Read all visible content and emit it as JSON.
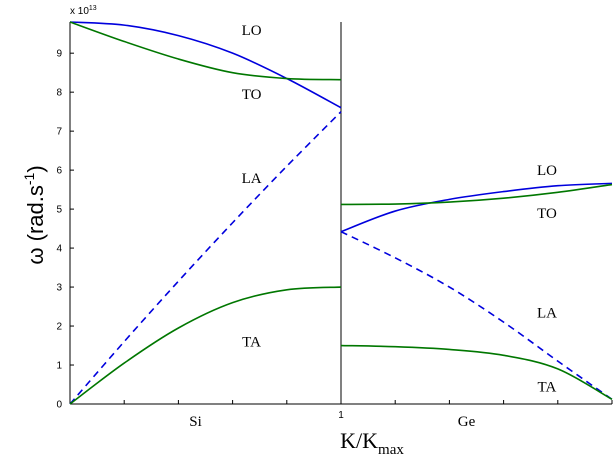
{
  "chart_data": {
    "type": "line",
    "ylabel_main": "ω (rad.s",
    "ylabel_sup": "-1",
    "ylabel_tail": ")",
    "xlabel_main": "K/K",
    "xlabel_sub": "max",
    "y_exponent_prefix": "x 10",
    "y_exponent_power": "13",
    "ylim": [
      0,
      9.8
    ],
    "yticks": [
      "0",
      "1",
      "2",
      "3",
      "4",
      "5",
      "6",
      "7",
      "8",
      "9"
    ],
    "xlim": [
      0,
      2
    ],
    "center_tick_label": "1",
    "regions": [
      "Si",
      "Ge"
    ],
    "branch_labels": [
      {
        "text": "LO",
        "x": 0.67,
        "y": 9.6
      },
      {
        "text": "TO",
        "x": 0.67,
        "y": 7.95
      },
      {
        "text": "LA",
        "x": 0.67,
        "y": 5.8
      },
      {
        "text": "TA",
        "x": 0.67,
        "y": 1.6
      },
      {
        "text": "LO",
        "x": 1.76,
        "y": 6.0
      },
      {
        "text": "TO",
        "x": 1.76,
        "y": 4.9
      },
      {
        "text": "LA",
        "x": 1.76,
        "y": 2.35
      },
      {
        "text": "TA",
        "x": 1.76,
        "y": 0.45
      }
    ],
    "series": [
      {
        "color": "#0000dd",
        "dashed": false,
        "x": [
          0,
          0.2,
          0.4,
          0.6,
          0.8,
          1.0
        ],
        "y": [
          9.8,
          9.72,
          9.45,
          9.0,
          8.35,
          7.6
        ]
      },
      {
        "color": "#007700",
        "dashed": false,
        "x": [
          0,
          0.2,
          0.4,
          0.6,
          0.8,
          1.0
        ],
        "y": [
          9.8,
          9.3,
          8.85,
          8.5,
          8.35,
          8.32
        ]
      },
      {
        "color": "#0000dd",
        "dashed": true,
        "x": [
          0,
          0.2,
          0.4,
          0.6,
          0.8,
          1.0
        ],
        "y": [
          0,
          1.6,
          3.15,
          4.65,
          6.1,
          7.5
        ]
      },
      {
        "color": "#007700",
        "dashed": false,
        "x": [
          0,
          0.2,
          0.4,
          0.6,
          0.8,
          1.0
        ],
        "y": [
          0,
          1.05,
          1.95,
          2.6,
          2.93,
          3.0
        ]
      },
      {
        "color": "#0000dd",
        "dashed": false,
        "x": [
          1.0,
          1.2,
          1.4,
          1.6,
          1.8,
          2.0
        ],
        "y": [
          4.42,
          4.95,
          5.25,
          5.45,
          5.6,
          5.66
        ]
      },
      {
        "color": "#007700",
        "dashed": false,
        "x": [
          1.0,
          1.2,
          1.4,
          1.6,
          1.8,
          2.0
        ],
        "y": [
          5.12,
          5.13,
          5.18,
          5.28,
          5.43,
          5.63
        ]
      },
      {
        "color": "#0000dd",
        "dashed": true,
        "x": [
          1.0,
          1.2,
          1.4,
          1.6,
          1.8,
          2.0
        ],
        "y": [
          4.42,
          3.75,
          3.0,
          2.1,
          1.1,
          0.12
        ]
      },
      {
        "color": "#007700",
        "dashed": false,
        "x": [
          1.0,
          1.2,
          1.4,
          1.6,
          1.8,
          2.0
        ],
        "y": [
          1.5,
          1.47,
          1.4,
          1.25,
          0.9,
          0.12
        ]
      }
    ]
  }
}
